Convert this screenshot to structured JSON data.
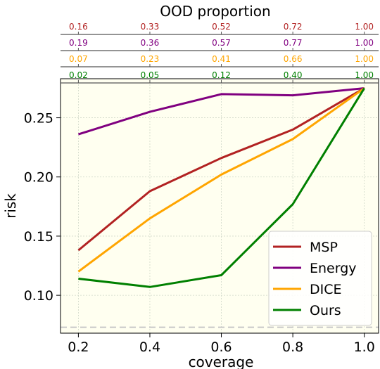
{
  "chart_data": {
    "type": "line",
    "title": "OOD proportion",
    "xlabel": "coverage",
    "ylabel": "risk",
    "x": [
      0.2,
      0.4,
      0.6,
      0.8,
      1.0
    ],
    "x_ticks": [
      "0.2",
      "0.4",
      "0.6",
      "0.8",
      "1.0"
    ],
    "y_ticks": [
      "0.10",
      "0.15",
      "0.20",
      "0.25"
    ],
    "xlim": [
      0.15,
      1.04
    ],
    "ylim": [
      0.068,
      0.283
    ],
    "grid": true,
    "legend_position": "bottom-right",
    "background_color": "#fffff0",
    "series": [
      {
        "name": "MSP",
        "color": "#b22222",
        "values": [
          0.138,
          0.188,
          0.216,
          0.24,
          0.275
        ]
      },
      {
        "name": "Energy",
        "color": "#800080",
        "values": [
          0.236,
          0.255,
          0.27,
          0.269,
          0.275
        ]
      },
      {
        "name": "DICE",
        "color": "#ffa500",
        "values": [
          0.12,
          0.165,
          0.202,
          0.232,
          0.275
        ]
      },
      {
        "name": "Ours",
        "color": "#008000",
        "values": [
          0.114,
          0.107,
          0.117,
          0.177,
          0.275
        ]
      }
    ],
    "reference_line": {
      "y": 0.073,
      "color": "#c8c8c8"
    },
    "ood_proportion_rows": [
      {
        "series": "MSP",
        "color": "#b22222",
        "labels": [
          "0.16",
          "0.33",
          "0.52",
          "0.72",
          "1.00"
        ]
      },
      {
        "series": "Energy",
        "color": "#800080",
        "labels": [
          "0.19",
          "0.36",
          "0.57",
          "0.77",
          "1.00"
        ]
      },
      {
        "series": "DICE",
        "color": "#ffa500",
        "labels": [
          "0.07",
          "0.23",
          "0.41",
          "0.66",
          "1.00"
        ]
      },
      {
        "series": "Ours",
        "color": "#008000",
        "labels": [
          "0.02",
          "0.05",
          "0.12",
          "0.40",
          "1.00"
        ]
      }
    ]
  }
}
